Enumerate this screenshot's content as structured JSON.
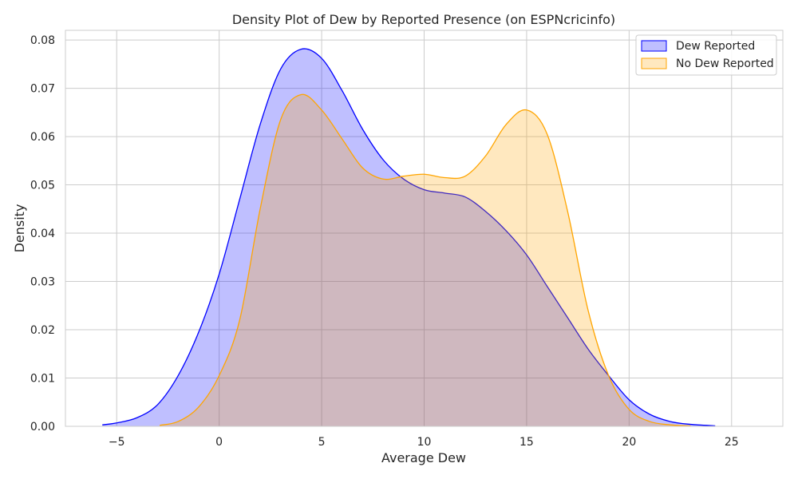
{
  "chart_data": {
    "type": "area",
    "title": "Density Plot of Dew by Reported Presence (on ESPNcricinfo)",
    "xlabel": "Average Dew",
    "ylabel": "Density",
    "xlim": [
      -7.5,
      27.5
    ],
    "ylim": [
      0,
      0.082
    ],
    "x_ticks": [
      -5,
      0,
      5,
      10,
      15,
      20,
      25
    ],
    "x_tick_labels": [
      "−5",
      "0",
      "5",
      "10",
      "15",
      "20",
      "25"
    ],
    "y_ticks": [
      0,
      0.01,
      0.02,
      0.03,
      0.04,
      0.05,
      0.06,
      0.07,
      0.08
    ],
    "y_tick_labels": [
      "0.00",
      "0.01",
      "0.02",
      "0.03",
      "0.04",
      "0.05",
      "0.06",
      "0.07",
      "0.08"
    ],
    "grid": true,
    "legend_position": "top-right",
    "series": [
      {
        "name": "Dew Reported",
        "stroke": "#0000ff",
        "fill": "#0000ff",
        "fill_opacity": 0.25,
        "x": [
          -5.7,
          -5,
          -4,
          -3,
          -2,
          -1,
          0,
          1,
          2,
          3,
          4,
          5,
          6,
          7,
          8,
          9,
          10,
          11,
          12,
          13,
          14,
          15,
          16,
          17,
          18,
          19,
          20,
          21,
          22,
          23,
          24.2
        ],
        "y": [
          0.0003,
          0.0007,
          0.0018,
          0.0045,
          0.0105,
          0.0195,
          0.0315,
          0.047,
          0.0625,
          0.074,
          0.0781,
          0.0762,
          0.0695,
          0.0615,
          0.0552,
          0.0512,
          0.049,
          0.0483,
          0.0475,
          0.0445,
          0.0405,
          0.0355,
          0.029,
          0.0225,
          0.016,
          0.0105,
          0.0055,
          0.0025,
          0.001,
          0.0004,
          0.0001
        ]
      },
      {
        "name": "No Dew Reported",
        "stroke": "#ffa500",
        "fill": "#ffa500",
        "fill_opacity": 0.25,
        "x": [
          -2.9,
          -2,
          -1,
          0,
          1,
          2,
          3,
          4,
          5,
          6,
          7,
          8,
          9,
          10,
          11,
          12,
          13,
          14,
          15,
          16,
          17,
          18,
          19,
          20,
          21,
          22,
          23
        ],
        "y": [
          0.0002,
          0.001,
          0.004,
          0.0105,
          0.022,
          0.045,
          0.0635,
          0.0687,
          0.0655,
          0.0595,
          0.0535,
          0.0512,
          0.0518,
          0.0522,
          0.0515,
          0.0518,
          0.056,
          0.0625,
          0.0655,
          0.0605,
          0.0445,
          0.024,
          0.0105,
          0.0035,
          0.001,
          0.0003,
          0.0001
        ]
      }
    ]
  }
}
